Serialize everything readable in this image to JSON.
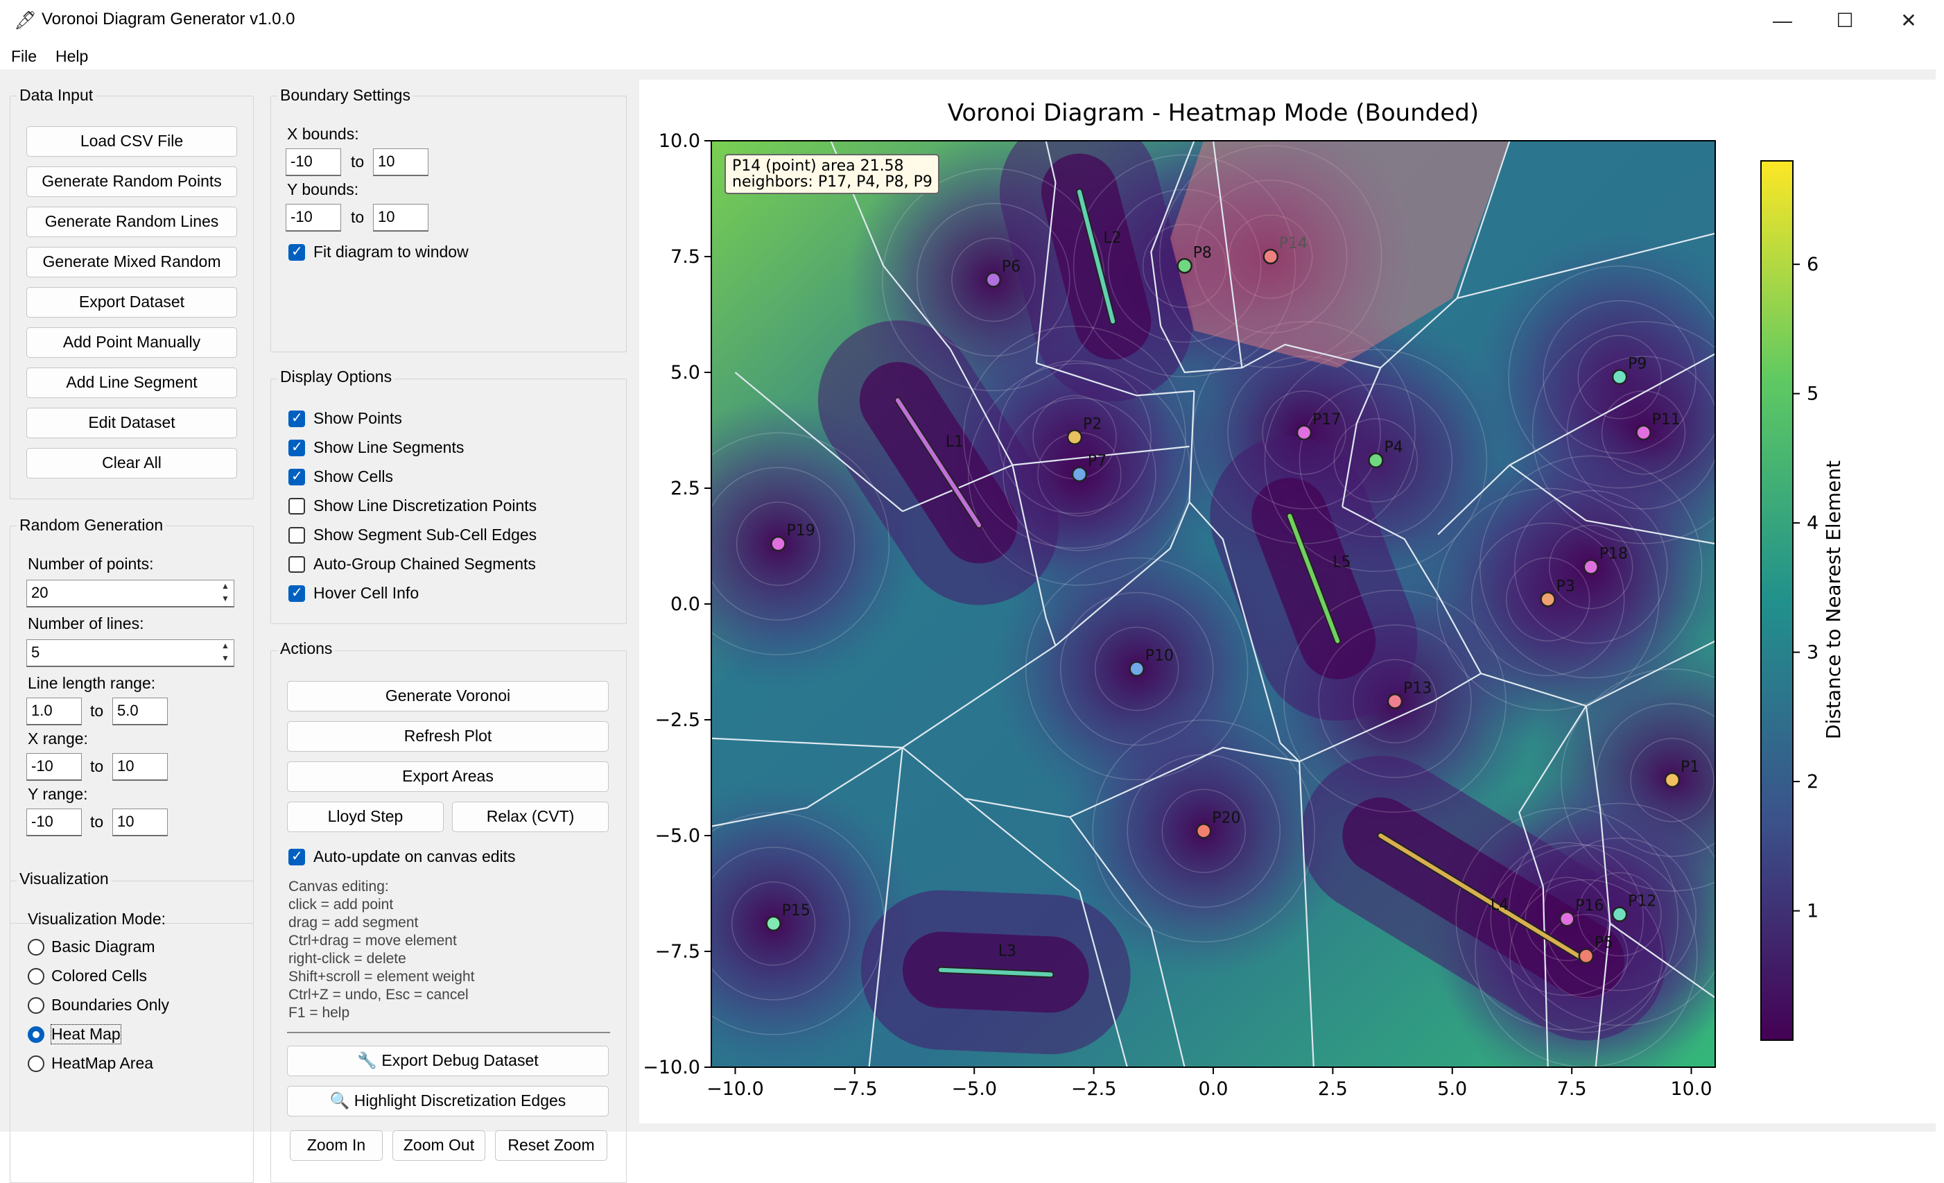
{
  "window": {
    "title": "Voronoi Diagram Generator v1.0.0",
    "minimize": "—",
    "maximize": "☐",
    "close": "✕"
  },
  "menu": {
    "file": "File",
    "help": "Help"
  },
  "data_input": {
    "title": "Data Input",
    "buttons": [
      "Load CSV File",
      "Generate Random Points",
      "Generate Random Lines",
      "Generate Mixed Random",
      "Export Dataset",
      "Add Point Manually",
      "Add Line Segment",
      "Edit Dataset",
      "Clear All"
    ]
  },
  "random_generation": {
    "title": "Random Generation",
    "num_points_label": "Number of points:",
    "num_points": "20",
    "num_lines_label": "Number of lines:",
    "num_lines": "5",
    "line_length_label": "Line length range:",
    "line_min": "1.0",
    "line_max": "5.0",
    "x_range_label": "X range:",
    "x_min": "-10",
    "x_max": "10",
    "y_range_label": "Y range:",
    "y_min": "-10",
    "y_max": "10",
    "to": "to"
  },
  "visualization": {
    "title": "Visualization",
    "mode_label": "Visualization Mode:",
    "modes": [
      "Basic Diagram",
      "Colored Cells",
      "Boundaries Only",
      "Heat Map",
      "HeatMap Area"
    ],
    "selected": "Heat Map"
  },
  "boundary": {
    "title": "Boundary Settings",
    "x_label": "X bounds:",
    "x_min": "-10",
    "x_max": "10",
    "y_label": "Y bounds:",
    "y_min": "-10",
    "y_max": "10",
    "to": "to",
    "fit_label": "Fit diagram to window"
  },
  "display": {
    "title": "Display Options",
    "options": [
      {
        "label": "Show Points",
        "checked": true
      },
      {
        "label": "Show Line Segments",
        "checked": true
      },
      {
        "label": "Show Cells",
        "checked": true
      },
      {
        "label": "Show Line Discretization Points",
        "checked": false
      },
      {
        "label": "Show Segment Sub-Cell Edges",
        "checked": false
      },
      {
        "label": "Auto-Group Chained Segments",
        "checked": false
      },
      {
        "label": "Hover Cell Info",
        "checked": true
      }
    ]
  },
  "actions": {
    "title": "Actions",
    "generate": "Generate Voronoi",
    "refresh": "Refresh Plot",
    "export_areas": "Export Areas",
    "lloyd": "Lloyd Step",
    "relax": "Relax (CVT)",
    "auto_update": "Auto-update on canvas edits",
    "help_lines": [
      "Canvas editing:",
      "click = add point",
      "drag = add segment",
      "Ctrl+drag = move element",
      "right-click = delete",
      "Shift+scroll = element weight",
      "Ctrl+Z = undo,  Esc = cancel",
      "F1 = help"
    ],
    "export_debug": "Export Debug Dataset",
    "highlight": "Highlight Discretization Edges",
    "zoom_in": "Zoom In",
    "zoom_out": "Zoom Out",
    "reset_zoom": "Reset Zoom"
  },
  "chart_data": {
    "type": "heatmap",
    "title": "Voronoi Diagram - Heatmap Mode (Bounded)",
    "xlim": [
      -10.5,
      10.5
    ],
    "ylim": [
      -10,
      10
    ],
    "xticks": [
      -10.0,
      -7.5,
      -5.0,
      -2.5,
      0.0,
      2.5,
      5.0,
      7.5,
      10.0
    ],
    "yticks": [
      -10.0,
      -7.5,
      -5.0,
      -2.5,
      0.0,
      2.5,
      5.0,
      7.5,
      10.0
    ],
    "xticklabels": [
      "−10.0",
      "−7.5",
      "−5.0",
      "−2.5",
      "0.0",
      "2.5",
      "5.0",
      "7.5",
      "10.0"
    ],
    "yticklabels": [
      "−10.0",
      "−7.5",
      "−5.0",
      "−2.5",
      "0.0",
      "2.5",
      "5.0",
      "7.5",
      "10.0"
    ],
    "colorbar_label": "Distance to Nearest Element",
    "colorbar_ticks": [
      1,
      2,
      3,
      4,
      5,
      6
    ],
    "colorbar_range": [
      0,
      6.8
    ],
    "tooltip": {
      "line1": "P14 (point)   area 21.58",
      "line2": "neighbors: P17, P4, P8, P9"
    },
    "highlighted": "P14",
    "points": [
      {
        "name": "P1",
        "x": 9.6,
        "y": -3.8,
        "color": "#f0c060"
      },
      {
        "name": "P2",
        "x": -2.9,
        "y": 3.6,
        "color": "#e8c060"
      },
      {
        "name": "P3",
        "x": 7.0,
        "y": 0.1,
        "color": "#f0a070"
      },
      {
        "name": "P4",
        "x": 3.4,
        "y": 3.1,
        "color": "#70d880"
      },
      {
        "name": "P5",
        "x": 7.8,
        "y": -7.6,
        "color": "#f08070"
      },
      {
        "name": "P6",
        "x": -4.6,
        "y": 7.0,
        "color": "#b070e0"
      },
      {
        "name": "P7",
        "x": -2.8,
        "y": 2.8,
        "color": "#70a8e8"
      },
      {
        "name": "P8",
        "x": -0.6,
        "y": 7.3,
        "color": "#70d880"
      },
      {
        "name": "P9",
        "x": 8.5,
        "y": 4.9,
        "color": "#70e0c0"
      },
      {
        "name": "P10",
        "x": -1.6,
        "y": -1.4,
        "color": "#70a8e8"
      },
      {
        "name": "P11",
        "x": 9.0,
        "y": 3.7,
        "color": "#e070e0"
      },
      {
        "name": "P12",
        "x": 8.5,
        "y": -6.7,
        "color": "#70e0c0"
      },
      {
        "name": "P13",
        "x": 3.8,
        "y": -2.1,
        "color": "#f08090"
      },
      {
        "name": "P14",
        "x": 1.2,
        "y": 7.5,
        "color": "#f08080"
      },
      {
        "name": "P15",
        "x": -9.2,
        "y": -6.9,
        "color": "#80e8b0"
      },
      {
        "name": "P16",
        "x": 7.4,
        "y": -6.8,
        "color": "#e070e0"
      },
      {
        "name": "P17",
        "x": 1.9,
        "y": 3.7,
        "color": "#e070e0"
      },
      {
        "name": "P18",
        "x": 7.9,
        "y": 0.8,
        "color": "#e070e0"
      },
      {
        "name": "P19",
        "x": -9.1,
        "y": 1.3,
        "color": "#e070e0"
      },
      {
        "name": "P20",
        "x": -0.2,
        "y": -4.9,
        "color": "#f08070"
      }
    ],
    "segments": [
      {
        "name": "L1",
        "x1": -6.6,
        "y1": 4.4,
        "x2": -4.9,
        "y2": 1.7,
        "color": "#c070d8",
        "lx": -5.6,
        "ly": 3.4
      },
      {
        "name": "L2",
        "x1": -2.8,
        "y1": 8.9,
        "x2": -2.1,
        "y2": 6.1,
        "color": "#60d0b0",
        "lx": -2.3,
        "ly": 7.8
      },
      {
        "name": "L3",
        "x1": -5.7,
        "y1": -7.9,
        "x2": -3.4,
        "y2": -8.0,
        "color": "#60d0b0",
        "lx": -4.5,
        "ly": -7.6
      },
      {
        "name": "L4",
        "x1": 3.5,
        "y1": -5.0,
        "x2": 7.8,
        "y2": -7.7,
        "color": "#d8b050",
        "lx": 5.8,
        "ly": -6.6
      },
      {
        "name": "L5",
        "x1": 1.6,
        "y1": 1.9,
        "x2": 2.6,
        "y2": -0.8,
        "color": "#70d060",
        "lx": 2.5,
        "ly": 0.8
      }
    ]
  }
}
